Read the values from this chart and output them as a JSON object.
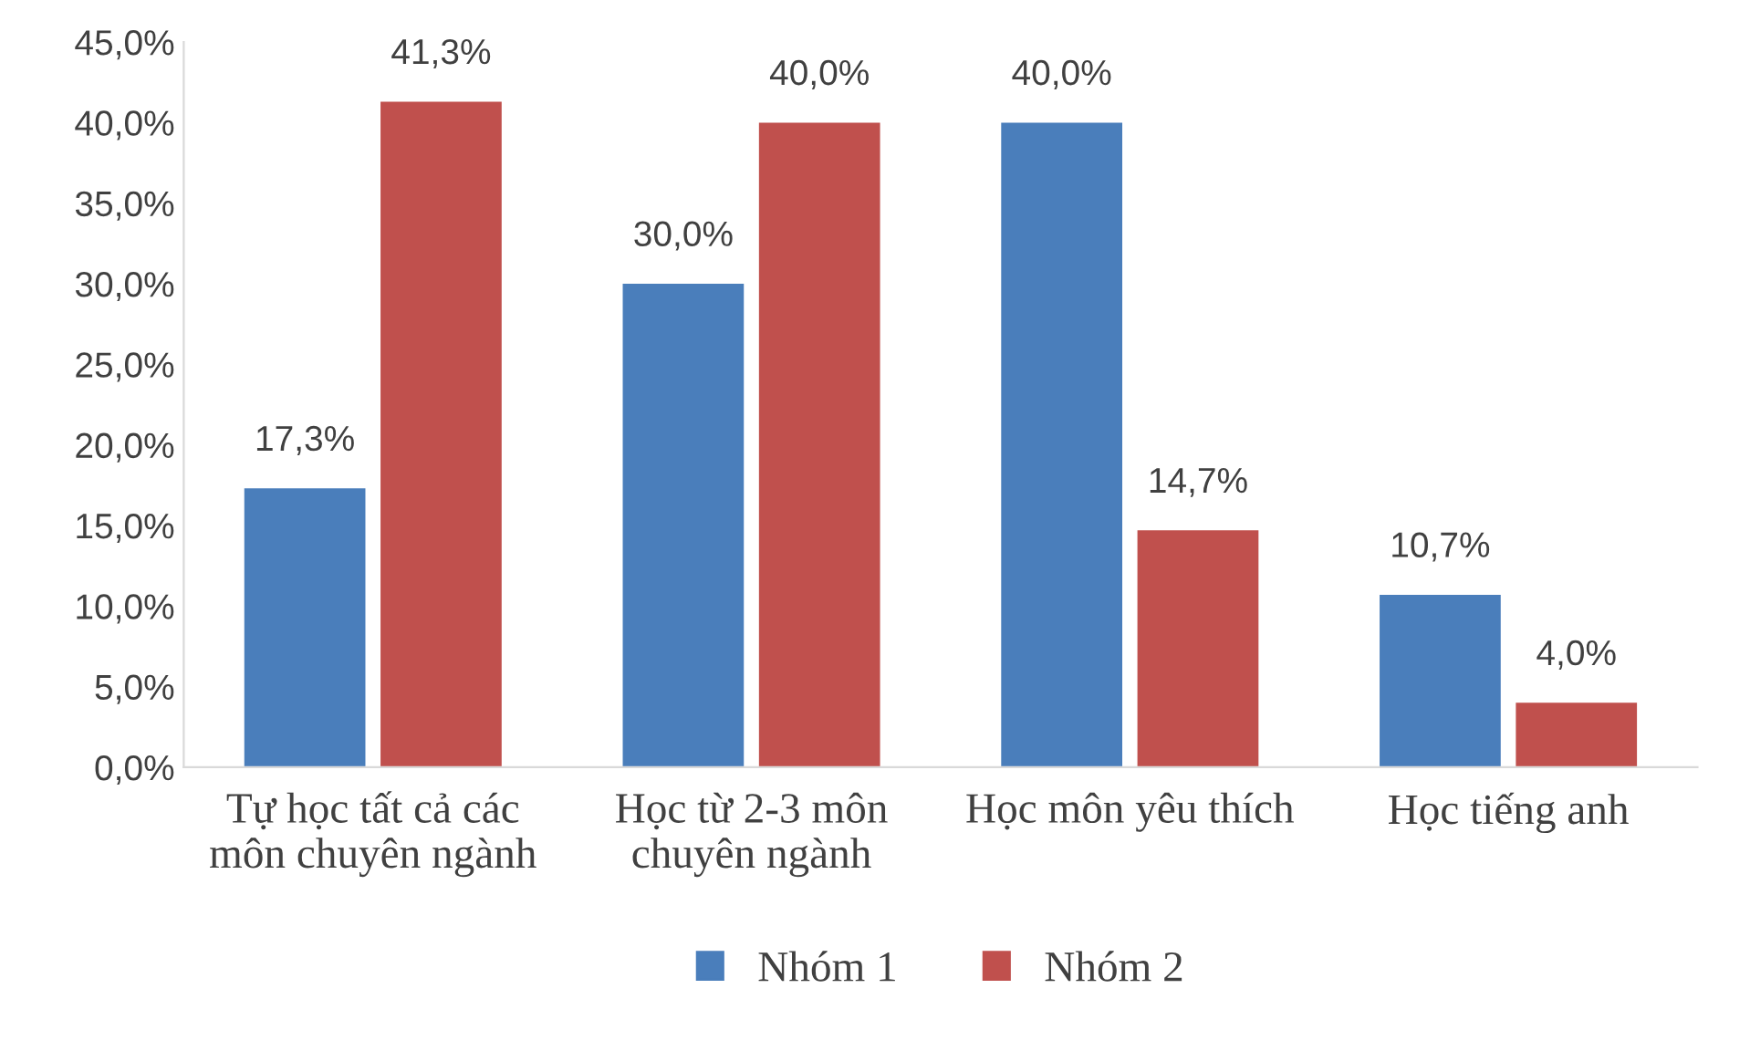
{
  "chart_data": {
    "type": "bar",
    "categories": [
      "Tự học tất cả các\nmôn chuyên ngành",
      "Học từ 2-3 môn\nchuyên ngành",
      "Học môn yêu thích",
      "Học tiếng anh"
    ],
    "series": [
      {
        "name": "Nhóm 1",
        "color": "#4a7ebb",
        "values": [
          17.3,
          30.0,
          40.0,
          10.7
        ],
        "value_labels": [
          "17,3%",
          "30,0%",
          "40,0%",
          "10,7%"
        ]
      },
      {
        "name": "Nhóm 2",
        "color": "#c0504d",
        "values": [
          41.3,
          40.0,
          14.7,
          4.0
        ],
        "value_labels": [
          "41,3%",
          "40,0%",
          "14,7%",
          "4,0%"
        ]
      }
    ],
    "ylim": [
      0,
      45
    ],
    "yticks": [
      {
        "value": 0,
        "label": "0,0%"
      },
      {
        "value": 5,
        "label": "5,0%"
      },
      {
        "value": 10,
        "label": "10,0%"
      },
      {
        "value": 15,
        "label": "15,0%"
      },
      {
        "value": 20,
        "label": "20,0%"
      },
      {
        "value": 25,
        "label": "25,0%"
      },
      {
        "value": 30,
        "label": "30,0%"
      },
      {
        "value": 35,
        "label": "35,0%"
      },
      {
        "value": 40,
        "label": "40,0%"
      },
      {
        "value": 45,
        "label": "45,0%"
      }
    ],
    "grid": false,
    "legend": "bottom"
  }
}
